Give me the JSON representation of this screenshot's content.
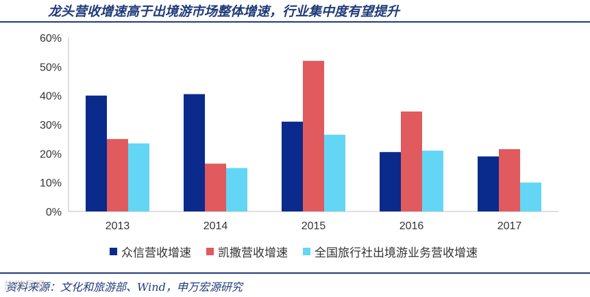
{
  "header": {
    "title": "龙头营收增速高于出境游市场整体增速，行业集中度有望提升"
  },
  "footer": {
    "source": "资料来源：文化和旅游部、Wind，申万宏源研究",
    "watermark": "旅游早报"
  },
  "colors": {
    "accent": "#1f3a7a",
    "series": [
      "#0a2a8c",
      "#e05a5e",
      "#63d6f5"
    ]
  },
  "chart_data": {
    "type": "bar",
    "title": "",
    "categories": [
      "2013",
      "2014",
      "2015",
      "2016",
      "2017"
    ],
    "series": [
      {
        "name": "众信营收增速",
        "values": [
          0.4,
          0.405,
          0.31,
          0.205,
          0.19
        ]
      },
      {
        "name": "凯撒营收增速",
        "values": [
          0.25,
          0.165,
          0.52,
          0.345,
          0.215
        ]
      },
      {
        "name": "全国旅行社出境游业务营收增速",
        "values": [
          0.235,
          0.15,
          0.265,
          0.21,
          0.1
        ]
      }
    ],
    "ylim": [
      0,
      0.6
    ],
    "yticks": [
      "0%",
      "10%",
      "20%",
      "30%",
      "40%",
      "50%",
      "60%"
    ],
    "xlabel": "",
    "ylabel": "",
    "grid": false,
    "legend": "bottom"
  }
}
